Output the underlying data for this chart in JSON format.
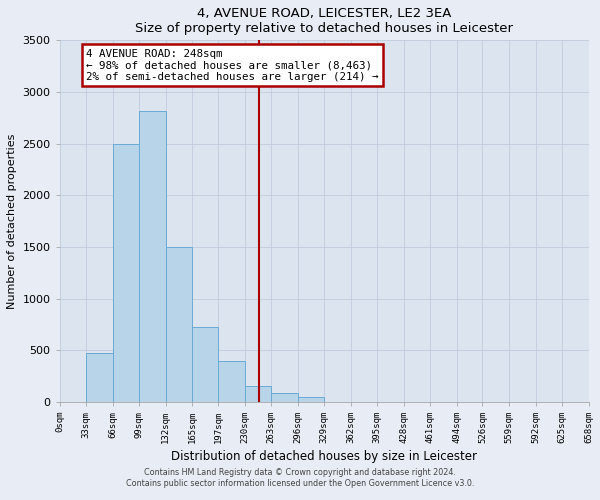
{
  "title": "4, AVENUE ROAD, LEICESTER, LE2 3EA",
  "subtitle": "Size of property relative to detached houses in Leicester",
  "xlabel": "Distribution of detached houses by size in Leicester",
  "ylabel": "Number of detached properties",
  "bin_edges": [
    0,
    33,
    66,
    99,
    132,
    165,
    197,
    230,
    263,
    296,
    329,
    362,
    395,
    428,
    461,
    494,
    526,
    559,
    592,
    625,
    658
  ],
  "counts": [
    0,
    470,
    2500,
    2820,
    1500,
    720,
    400,
    150,
    90,
    45,
    0,
    0,
    0,
    0,
    0,
    0,
    0,
    0,
    0,
    0
  ],
  "bar_color": "#b8d4e8",
  "bar_edge_color": "#6aaad4",
  "vline_x": 248,
  "vline_color": "#aa0000",
  "annotation_title": "4 AVENUE ROAD: 248sqm",
  "annotation_line1": "← 98% of detached houses are smaller (8,463)",
  "annotation_line2": "2% of semi-detached houses are larger (214) →",
  "annotation_box_edge_color": "#aa0000",
  "ylim": [
    0,
    3500
  ],
  "xlim": [
    0,
    658
  ],
  "tick_labels": [
    "0sqm",
    "33sqm",
    "66sqm",
    "99sqm",
    "132sqm",
    "165sqm",
    "197sqm",
    "230sqm",
    "263sqm",
    "296sqm",
    "329sqm",
    "362sqm",
    "395sqm",
    "428sqm",
    "461sqm",
    "494sqm",
    "526sqm",
    "559sqm",
    "592sqm",
    "625sqm",
    "658sqm"
  ],
  "footer_line1": "Contains HM Land Registry data © Crown copyright and database right 2024.",
  "footer_line2": "Contains public sector information licensed under the Open Government Licence v3.0.",
  "bg_color": "#e8ecf4",
  "plot_bg_color": "#dce4f0"
}
